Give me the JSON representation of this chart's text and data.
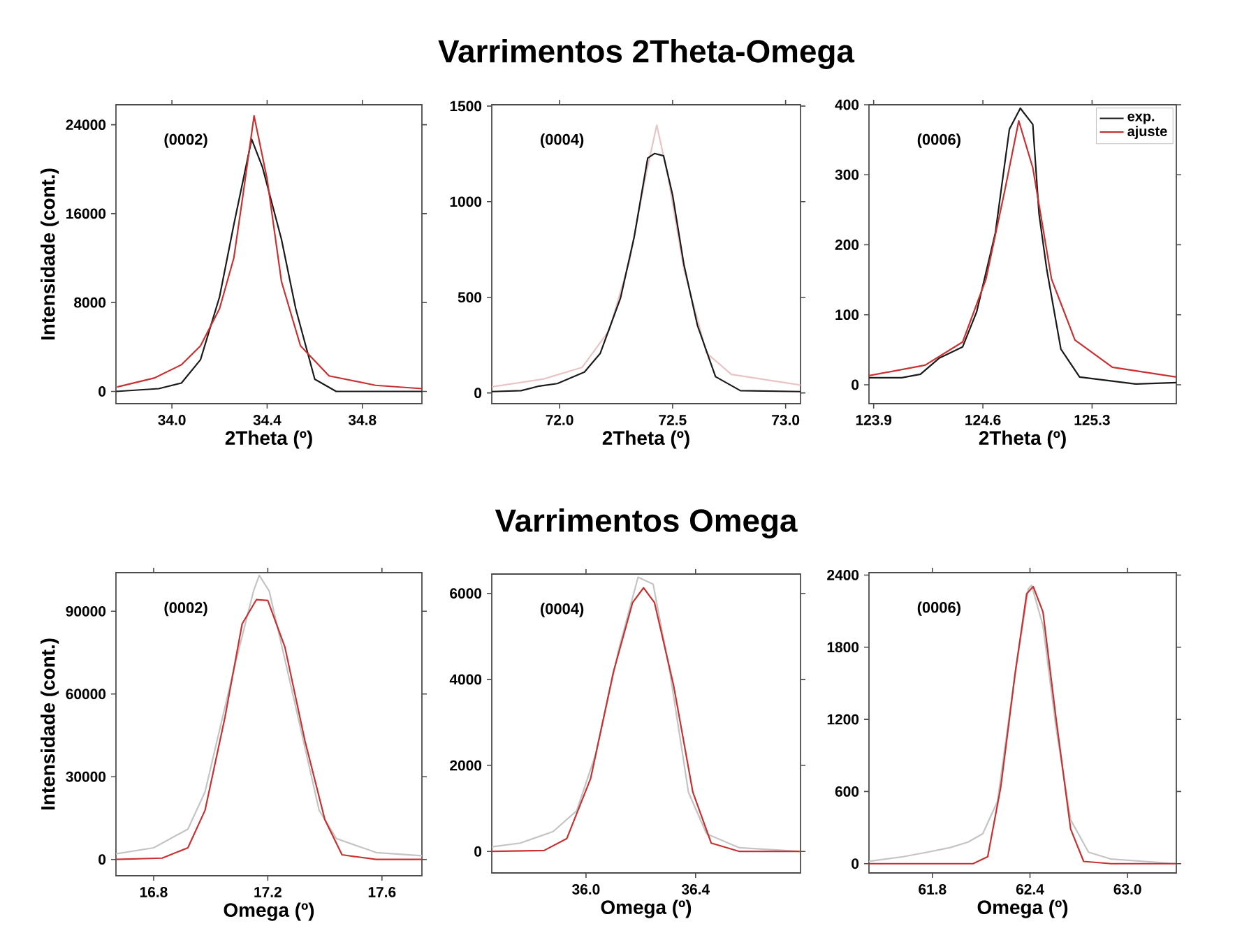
{
  "chart_data": [
    {
      "type": "line",
      "ylabel": "Intensidade (cont.)",
      "xlabel": "2Theta (º)",
      "annotations": [
        "(0002)"
      ],
      "xlim": [
        33.765,
        35.05
      ],
      "ylim": [
        -1100,
        25800
      ],
      "xticks": [
        {
          "value": 34.0,
          "label": "34.0"
        },
        {
          "value": 34.4,
          "label": "34.4"
        },
        {
          "value": 34.8,
          "label": "34.8"
        }
      ],
      "yticks": [
        0,
        8000,
        16000,
        24000
      ],
      "series": [
        {
          "color": "#1a1a1a",
          "x": [
            33.766,
            33.945,
            34.04,
            34.12,
            34.2,
            34.26,
            34.335,
            34.38,
            34.46,
            34.52,
            34.6,
            34.69,
            35.05
          ],
          "values": [
            0,
            250,
            750,
            2850,
            8500,
            15000,
            22700,
            20200,
            13700,
            7450,
            1100,
            0,
            0
          ]
        },
        {
          "color": "#c8312f",
          "x": [
            33.77,
            33.925,
            34.04,
            34.12,
            34.2,
            34.26,
            34.3,
            34.345,
            34.4,
            34.46,
            34.54,
            34.66,
            34.855,
            35.05
          ],
          "values": [
            400,
            1200,
            2400,
            4100,
            7450,
            12000,
            17900,
            24800,
            19100,
            9900,
            4100,
            1400,
            550,
            250
          ]
        }
      ]
    },
    {
      "type": "line",
      "title": "Varrimentos 2Theta-Omega",
      "xlabel": "2Theta (º)",
      "annotations": [
        "(0004)"
      ],
      "xlim": [
        71.7,
        73.066
      ],
      "ylim": [
        -56,
        1507
      ],
      "xticks": [
        {
          "value": 72.0,
          "label": "72.0"
        },
        {
          "value": 72.5,
          "label": "72.5"
        },
        {
          "value": 73.0,
          "label": "73.0"
        }
      ],
      "yticks": [
        0,
        500,
        1000,
        1500
      ],
      "series": [
        {
          "color": "#eac4c4",
          "x": [
            71.7,
            71.93,
            72.1,
            72.22,
            72.31,
            72.38,
            72.43,
            72.48,
            72.55,
            72.65,
            72.76,
            73.066
          ],
          "values": [
            32,
            73,
            134,
            328,
            693,
            1130,
            1400,
            1130,
            647,
            209,
            97,
            41
          ]
        },
        {
          "color": "#1a1a1a",
          "x": [
            71.7,
            71.83,
            71.91,
            71.99,
            72.11,
            72.18,
            72.27,
            72.33,
            72.39,
            72.42,
            72.46,
            72.5,
            72.55,
            72.61,
            72.69,
            72.8,
            73.066
          ],
          "values": [
            7,
            12,
            36,
            49,
            109,
            207,
            498,
            815,
            1228,
            1252,
            1240,
            1035,
            672,
            353,
            85,
            12,
            7
          ]
        }
      ]
    },
    {
      "type": "line",
      "xlabel": "2Theta (º)",
      "annotations": [
        "(0006)"
      ],
      "legend": "top right",
      "xlim": [
        123.87,
        125.84
      ],
      "ylim": [
        -27,
        400
      ],
      "xticks": [
        {
          "value": 123.9,
          "label": "123.9"
        },
        {
          "value": 124.6,
          "label": "124.6"
        },
        {
          "value": 125.3,
          "label": "125.3"
        }
      ],
      "yticks": [
        0,
        100,
        200,
        300,
        400
      ],
      "series": [
        {
          "name": "exp.",
          "color": "#1a1a1a",
          "x": [
            123.87,
            124.08,
            124.2,
            124.32,
            124.47,
            124.56,
            124.68,
            124.77,
            124.84,
            124.92,
            124.96,
            125.01,
            125.1,
            125.22,
            125.4,
            125.58,
            125.84
          ],
          "values": [
            10,
            10,
            15,
            38,
            54,
            104,
            217,
            365,
            395,
            372,
            244,
            164,
            51,
            11,
            6,
            1,
            3
          ]
        },
        {
          "name": "ajuste",
          "color": "#c8312f",
          "x": [
            123.87,
            124.23,
            124.47,
            124.62,
            124.74,
            124.83,
            124.92,
            125.04,
            125.19,
            125.43,
            125.84
          ],
          "values": [
            13,
            28,
            61,
            151,
            277,
            377,
            310,
            151,
            64,
            25,
            11
          ]
        }
      ]
    },
    {
      "type": "line",
      "ylabel": "Intensidade (cont.)",
      "xlabel": "Omega (º)",
      "annotations": [
        "(0002)"
      ],
      "xlim": [
        16.668,
        17.74
      ],
      "ylim": [
        -5900,
        104000
      ],
      "xticks": [
        {
          "value": 16.8,
          "label": "16.8"
        },
        {
          "value": 17.2,
          "label": "17.2"
        },
        {
          "value": 17.6,
          "label": "17.6"
        }
      ],
      "yticks": [
        0,
        30000,
        60000,
        90000
      ],
      "series": [
        {
          "color": "#c4c4c4",
          "x": [
            16.668,
            16.8,
            16.92,
            16.98,
            17.08,
            17.15,
            17.17,
            17.205,
            17.28,
            17.38,
            17.44,
            17.58,
            17.74
          ],
          "values": [
            2030,
            4230,
            11000,
            24500,
            68500,
            97300,
            103000,
            97300,
            63400,
            17800,
            7600,
            2500,
            1350
          ]
        },
        {
          "color": "#c8312f",
          "x": [
            16.668,
            16.83,
            16.92,
            16.98,
            17.05,
            17.11,
            17.16,
            17.2,
            17.26,
            17.33,
            17.4,
            17.46,
            17.58,
            17.74
          ],
          "values": [
            0,
            500,
            4230,
            17800,
            51600,
            85400,
            94200,
            93900,
            77000,
            43100,
            14400,
            1700,
            0,
            0
          ]
        }
      ]
    },
    {
      "type": "line",
      "title": "Varrimentos Omega",
      "xlabel": "Omega (º)",
      "annotations": [
        "(0004)"
      ],
      "xlim": [
        35.656,
        36.783
      ],
      "ylim": [
        -500,
        6450
      ],
      "xticks": [
        {
          "value": 36.0,
          "label": "36.0"
        },
        {
          "value": 36.4,
          "label": "36.4"
        }
      ],
      "yticks": [
        0,
        2000,
        4000,
        6000
      ],
      "series": [
        {
          "color": "#c4c4c4",
          "x": [
            35.656,
            35.76,
            35.88,
            35.966,
            36.034,
            36.12,
            36.19,
            36.245,
            36.306,
            36.374,
            36.44,
            36.56,
            36.78
          ],
          "values": [
            108,
            194,
            462,
            946,
            2237,
            4710,
            6376,
            6215,
            4172,
            1376,
            409,
            86,
            0
          ]
        },
        {
          "color": "#c8312f",
          "x": [
            35.656,
            35.847,
            35.93,
            36.017,
            36.1,
            36.17,
            36.21,
            36.25,
            36.32,
            36.39,
            36.457,
            36.56,
            36.78
          ],
          "values": [
            0,
            22,
            301,
            1699,
            4172,
            5785,
            6129,
            5785,
            3850,
            1376,
            194,
            0,
            0
          ]
        }
      ]
    },
    {
      "type": "line",
      "xlabel": "Omega (º)",
      "annotations": [
        "(0006)"
      ],
      "xlim": [
        61.41,
        63.3
      ],
      "ylim": [
        -77,
        2420
      ],
      "xticks": [
        {
          "value": 61.8,
          "label": "61.8"
        },
        {
          "value": 62.4,
          "label": "62.4"
        },
        {
          "value": 63.0,
          "label": "63.0"
        }
      ],
      "yticks": [
        0,
        600,
        1200,
        1800,
        2400
      ],
      "series": [
        {
          "color": "#c4c4c4",
          "x": [
            61.41,
            61.51,
            61.62,
            61.77,
            61.91,
            62.02,
            62.11,
            62.2,
            62.31,
            62.39,
            62.41,
            62.48,
            62.56,
            62.65,
            62.76,
            62.9,
            63.3
          ],
          "values": [
            19,
            38,
            58,
            96,
            134,
            180,
            250,
            518,
            1594,
            2285,
            2315,
            1978,
            1133,
            365,
            96,
            38,
            0
          ]
        },
        {
          "color": "#c8312f",
          "x": [
            61.41,
            62.05,
            62.14,
            62.22,
            62.31,
            62.38,
            62.42,
            62.48,
            62.56,
            62.65,
            62.73,
            62.9,
            63.3
          ],
          "values": [
            0,
            0,
            58,
            634,
            1594,
            2246,
            2304,
            2093,
            1210,
            288,
            19,
            0,
            0
          ]
        }
      ]
    }
  ]
}
